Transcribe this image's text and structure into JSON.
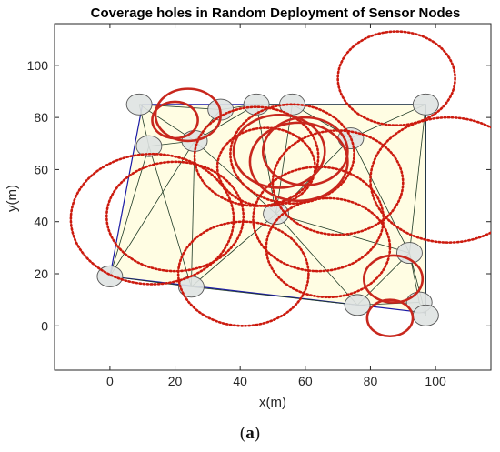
{
  "chart_data": {
    "type": "scatter",
    "title": "Coverage holes in Random Deployment of Sensor Nodes",
    "xlabel": "x(m)",
    "ylabel": "y(m)",
    "xlim": [
      -17,
      117
    ],
    "ylim": [
      -17,
      116
    ],
    "x_ticks": [
      0,
      20,
      40,
      60,
      80,
      100
    ],
    "y_ticks": [
      0,
      20,
      40,
      60,
      80,
      100
    ],
    "grid": false,
    "legend": "none",
    "colors": {
      "region_fill": "#fffde3",
      "mesh_line": "#1f3a25",
      "boundary_line": "#1a1aa6",
      "sensor_fill": "#dfe3e2",
      "sensor_edge": "#555555",
      "hole_dotted": "#cc1b0f",
      "hole_solid": "#c8271d"
    },
    "deployment_region": [
      [
        10,
        85
      ],
      [
        97,
        85
      ],
      [
        97,
        5
      ],
      [
        0,
        19
      ]
    ],
    "sensors": [
      {
        "x": 9,
        "y": 85
      },
      {
        "x": 34,
        "y": 83
      },
      {
        "x": 45,
        "y": 85
      },
      {
        "x": 56,
        "y": 85
      },
      {
        "x": 97,
        "y": 85
      },
      {
        "x": 12,
        "y": 69
      },
      {
        "x": 26,
        "y": 71
      },
      {
        "x": 74,
        "y": 72
      },
      {
        "x": 51,
        "y": 43
      },
      {
        "x": 92,
        "y": 28
      },
      {
        "x": 0,
        "y": 19
      },
      {
        "x": 25,
        "y": 15
      },
      {
        "x": 76,
        "y": 8
      },
      {
        "x": 95,
        "y": 9
      },
      {
        "x": 97,
        "y": 4
      }
    ],
    "triangulation_edges": [
      [
        0,
        1
      ],
      [
        1,
        2
      ],
      [
        2,
        3
      ],
      [
        3,
        4
      ],
      [
        0,
        5
      ],
      [
        0,
        6
      ],
      [
        5,
        6
      ],
      [
        1,
        6
      ],
      [
        6,
        2
      ],
      [
        2,
        8
      ],
      [
        3,
        8
      ],
      [
        3,
        7
      ],
      [
        4,
        7
      ],
      [
        7,
        8
      ],
      [
        7,
        9
      ],
      [
        8,
        9
      ],
      [
        4,
        9
      ],
      [
        6,
        8
      ],
      [
        6,
        11
      ],
      [
        5,
        10
      ],
      [
        10,
        11
      ],
      [
        11,
        8
      ],
      [
        8,
        12
      ],
      [
        9,
        12
      ],
      [
        11,
        12
      ],
      [
        12,
        13
      ],
      [
        9,
        13
      ],
      [
        9,
        14
      ],
      [
        13,
        14
      ],
      [
        4,
        14
      ],
      [
        6,
        10
      ],
      [
        5,
        11
      ]
    ],
    "coverage_holes_dotted": [
      {
        "cx": 88,
        "cy": 95,
        "r": 18
      },
      {
        "cx": 13,
        "cy": 41,
        "r": 25
      },
      {
        "cx": 20,
        "cy": 42,
        "r": 21
      },
      {
        "cx": 104,
        "cy": 56,
        "r": 24
      },
      {
        "cx": 45,
        "cy": 65,
        "r": 19
      },
      {
        "cx": 41,
        "cy": 20,
        "r": 20
      },
      {
        "cx": 70,
        "cy": 55,
        "r": 20
      },
      {
        "cx": 67,
        "cy": 30,
        "r": 19
      },
      {
        "cx": 56,
        "cy": 66,
        "r": 19
      },
      {
        "cx": 48,
        "cy": 61,
        "r": 15
      },
      {
        "cx": 64,
        "cy": 41,
        "r": 20
      }
    ],
    "coverage_holes_solid": [
      {
        "cx": 24,
        "cy": 81,
        "r": 10
      },
      {
        "cx": 20,
        "cy": 79,
        "r": 7
      },
      {
        "cx": 52,
        "cy": 67,
        "r": 14
      },
      {
        "cx": 58,
        "cy": 63,
        "r": 15
      },
      {
        "cx": 60,
        "cy": 67,
        "r": 13
      },
      {
        "cx": 87,
        "cy": 18,
        "r": 9
      },
      {
        "cx": 86,
        "cy": 3,
        "r": 7
      }
    ]
  },
  "caption": {
    "open": "(",
    "letter": "a",
    "close": ")"
  }
}
